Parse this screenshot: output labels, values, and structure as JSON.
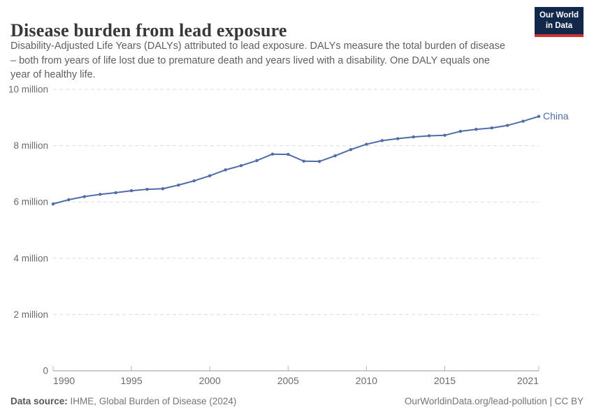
{
  "header": {
    "title": "Disease burden from lead exposure",
    "subtitle_lines": [
      "Disability-Adjusted Life Years (DALYs) attributed to lead exposure. DALYs measure the total burden of disease",
      "– both from years of life lost due to premature death and years lived with a disability. One DALY equals one",
      "year of healthy life."
    ],
    "logo": {
      "line1": "Our World",
      "line2": "in Data"
    }
  },
  "chart_data": {
    "type": "line",
    "title": "Disease burden from lead exposure",
    "entity": "China",
    "values_unit": "million DALYs",
    "x": [
      1990,
      1991,
      1992,
      1993,
      1994,
      1995,
      1996,
      1997,
      1998,
      1999,
      2000,
      2001,
      2002,
      2003,
      2004,
      2005,
      2006,
      2007,
      2008,
      2009,
      2010,
      2011,
      2012,
      2013,
      2014,
      2015,
      2016,
      2017,
      2018,
      2019,
      2020,
      2021
    ],
    "series": [
      {
        "name": "China",
        "color": "#4f6ca9",
        "values": [
          5.93,
          6.08,
          6.19,
          6.27,
          6.33,
          6.4,
          6.45,
          6.47,
          6.6,
          6.75,
          6.93,
          7.14,
          7.29,
          7.47,
          7.7,
          7.69,
          7.45,
          7.44,
          7.64,
          7.86,
          8.05,
          8.18,
          8.25,
          8.31,
          8.35,
          8.37,
          8.51,
          8.58,
          8.63,
          8.72,
          8.87,
          9.04
        ]
      }
    ],
    "xlim": [
      1990,
      2021
    ],
    "ylim_millions": [
      0,
      10
    ],
    "yticks": [
      {
        "value": 0,
        "label": "0"
      },
      {
        "value": 2,
        "label": "2 million"
      },
      {
        "value": 4,
        "label": "4 million"
      },
      {
        "value": 6,
        "label": "6 million"
      },
      {
        "value": 8,
        "label": "8 million"
      },
      {
        "value": 10,
        "label": "10 million"
      }
    ],
    "xticks": [
      {
        "value": 1990,
        "label": "1990"
      },
      {
        "value": 1995,
        "label": "1995"
      },
      {
        "value": 2000,
        "label": "2000"
      },
      {
        "value": 2005,
        "label": "2005"
      },
      {
        "value": 2010,
        "label": "2010"
      },
      {
        "value": 2015,
        "label": "2015"
      },
      {
        "value": 2021,
        "label": "2021"
      }
    ],
    "grid": "dashed-horizontal",
    "legend": "end-of-line-label"
  },
  "footer": {
    "source_label": "Data source:",
    "source_text": " IHME, Global Burden of Disease (2024)",
    "credit": "OurWorldinData.org/lead-pollution | CC BY"
  },
  "colors": {
    "line": "#4f6ca9",
    "grid": "#dcdcdc",
    "axis": "#9a9a9a",
    "tick_label": "#6b6b6b",
    "logo_bg": "#12284b",
    "logo_bar": "#cb3230"
  }
}
